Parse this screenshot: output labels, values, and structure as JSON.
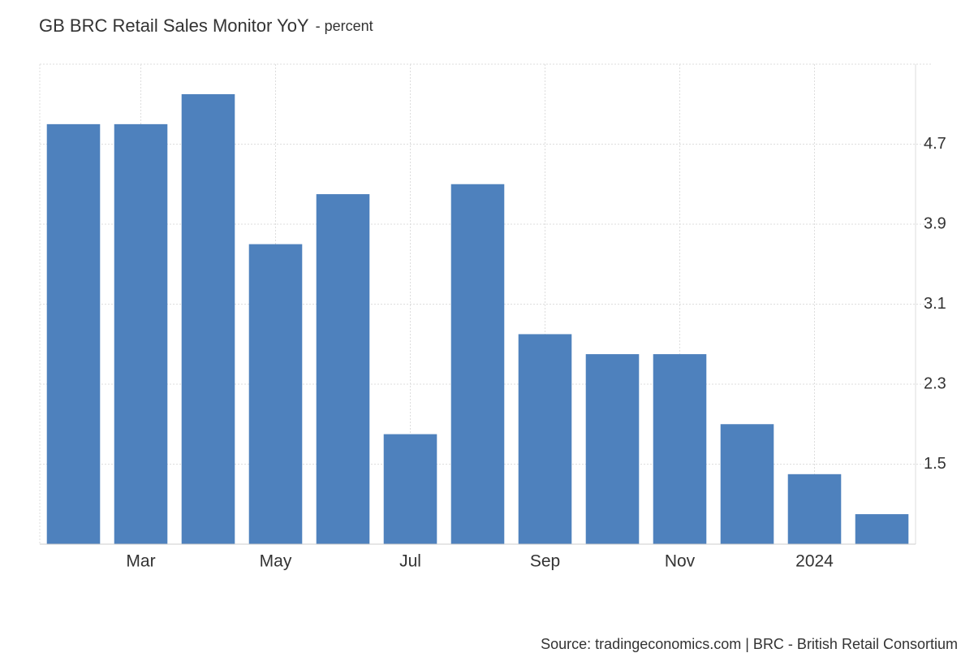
{
  "chart_data": {
    "type": "bar",
    "title": "GB BRC Retail Sales Monitor YoY",
    "subtitle": "- percent",
    "source": "Source: tradingeconomics.com | BRC - British Retail Consortium",
    "categories": [
      null,
      "Mar",
      null,
      "May",
      null,
      "Jul",
      null,
      "Sep",
      null,
      "Nov",
      null,
      "2024",
      null
    ],
    "values": [
      4.9,
      4.9,
      5.2,
      3.7,
      4.2,
      1.8,
      4.3,
      2.8,
      2.6,
      2.6,
      1.9,
      1.4,
      1.0
    ],
    "color": "#4e81bd",
    "ylim": [
      0.7,
      5.5
    ],
    "yticks": [
      1.5,
      2.3,
      3.1,
      3.9,
      4.7
    ],
    "grid": true
  }
}
